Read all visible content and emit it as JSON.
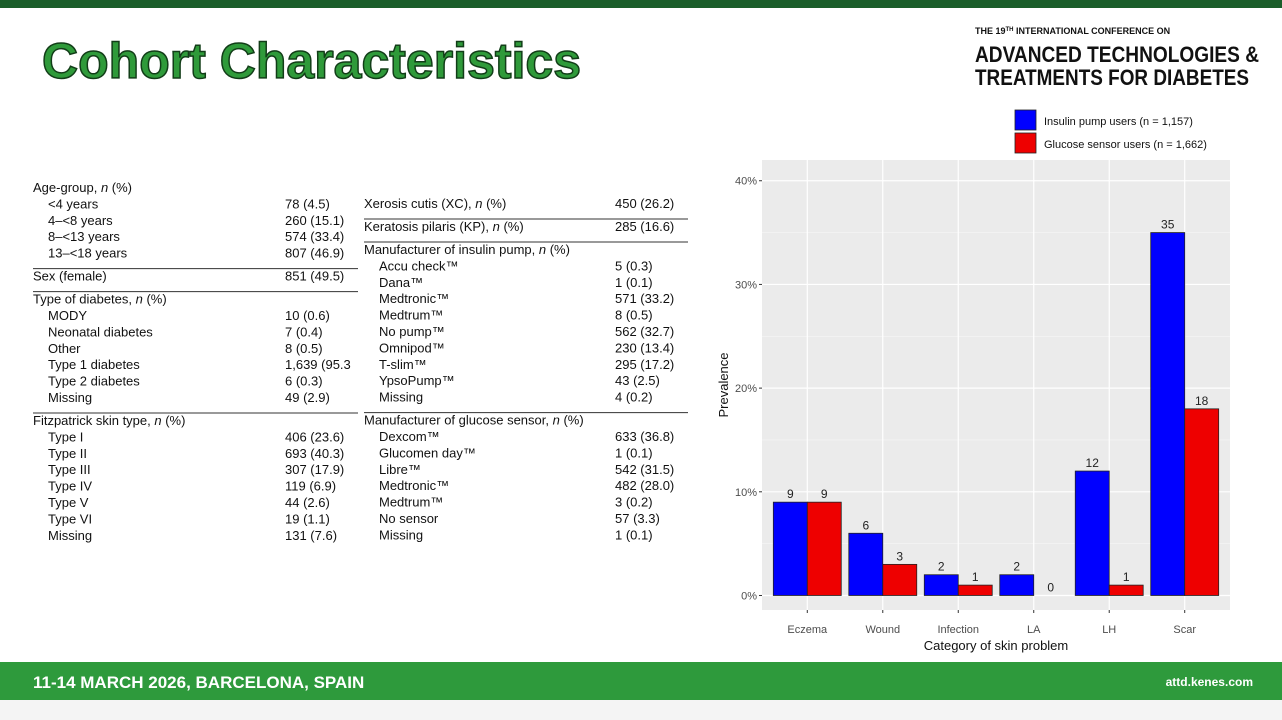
{
  "header": {
    "title": "Cohort Characteristics",
    "conference": {
      "prefix": "THE 19",
      "sup": "TH",
      "suffix": " INTERNATIONAL CONFERENCE ON",
      "line1": "ADVANCED TECHNOLOGIES &",
      "line2": "TREATMENTS FOR DIABETES"
    }
  },
  "table": {
    "columns": [
      [
        {
          "heading": [
            "Age-group, ",
            "n",
            " (%)"
          ],
          "rows": [
            [
              "<4 years",
              "78 (4.5)"
            ],
            [
              "4–<8 years",
              "260 (15.1)"
            ],
            [
              "8–<13 years",
              "574 (33.4)"
            ],
            [
              "13–<18 years",
              "807 (46.9)"
            ]
          ]
        },
        {
          "heading": [
            "Sex (female)"
          ],
          "value": "851 (49.5)",
          "rows": []
        },
        {
          "heading": [
            "Type of diabetes, ",
            "n",
            " (%)"
          ],
          "rows": [
            [
              "MODY",
              "10 (0.6)"
            ],
            [
              "Neonatal diabetes",
              "7 (0.4)"
            ],
            [
              "Other",
              "8 (0.5)"
            ],
            [
              "Type 1 diabetes",
              "1,639 (95.3"
            ],
            [
              "Type 2 diabetes",
              "6 (0.3)"
            ],
            [
              "Missing",
              "49 (2.9)"
            ]
          ]
        },
        {
          "heading": [
            "Fitzpatrick skin type, ",
            "n",
            " (%)"
          ],
          "rows": [
            [
              "Type I",
              "406 (23.6)"
            ],
            [
              "Type II",
              "693 (40.3)"
            ],
            [
              "Type III",
              "307 (17.9)"
            ],
            [
              "Type IV",
              "119 (6.9)"
            ],
            [
              "Type V",
              "44 (2.6)"
            ],
            [
              "Type VI",
              "19 (1.1)"
            ],
            [
              "Missing",
              "131 (7.6)"
            ]
          ]
        }
      ],
      [
        {
          "heading": [
            "Xerosis cutis (XC), ",
            "n",
            " (%)"
          ],
          "value": "450 (26.2)",
          "rows": []
        },
        {
          "heading": [
            "Keratosis pilaris (KP), ",
            "n",
            " (%)"
          ],
          "value": "285 (16.6)",
          "rows": []
        },
        {
          "heading": [
            "Manufacturer of insulin pump, ",
            "n",
            " (%)"
          ],
          "rows": [
            [
              "Accu check™",
              "5 (0.3)"
            ],
            [
              "Dana™",
              "1 (0.1)"
            ],
            [
              "Medtronic™",
              "571 (33.2)"
            ],
            [
              "Medtrum™",
              "8 (0.5)"
            ],
            [
              "No pump™",
              "562 (32.7)"
            ],
            [
              "Omnipod™",
              "230 (13.4)"
            ],
            [
              "T-slim™",
              "295 (17.2)"
            ],
            [
              "YpsoPump™",
              "43 (2.5)"
            ],
            [
              "Missing",
              "4 (0.2)"
            ]
          ]
        },
        {
          "heading": [
            "Manufacturer of glucose sensor, ",
            "n",
            " (%)"
          ],
          "rows": [
            [
              "Dexcom™",
              "633 (36.8)"
            ],
            [
              "Glucomen day™",
              "1 (0.1)"
            ],
            [
              "Libre™",
              "542 (31.5)"
            ],
            [
              "Medtronic™",
              "482 (28.0)"
            ],
            [
              "Medtrum™",
              "3 (0.2)"
            ],
            [
              "No sensor",
              "57 (3.3)"
            ],
            [
              "Missing",
              "1 (0.1)"
            ]
          ]
        }
      ]
    ]
  },
  "chart_data": {
    "type": "bar",
    "x_label": "Category of skin problem",
    "y_label": "Prevalence",
    "categories": [
      "Eczema",
      "Wound",
      "Infection",
      "LA",
      "LH",
      "Scar"
    ],
    "series": [
      {
        "name": "Insulin pump users (n = 1,157)",
        "color": "#0000ff",
        "values": [
          9,
          6,
          2,
          2,
          12,
          35
        ]
      },
      {
        "name": "Glucose sensor users (n = 1,662)",
        "color": "#ee0000",
        "values": [
          9,
          3,
          1,
          0,
          1,
          18
        ]
      }
    ],
    "ylim": [
      -1.4,
      42
    ],
    "yticks": [
      {
        "value": 0,
        "label": "0%"
      },
      {
        "value": 10,
        "label": "10%"
      },
      {
        "value": 20,
        "label": "20%"
      },
      {
        "value": 30,
        "label": "30%"
      },
      {
        "value": 40,
        "label": "40%"
      }
    ],
    "grid": true
  },
  "footer": {
    "event": "11-14 MARCH 2026, BARCELONA, SPAIN",
    "url": "attd.kenes.com"
  }
}
